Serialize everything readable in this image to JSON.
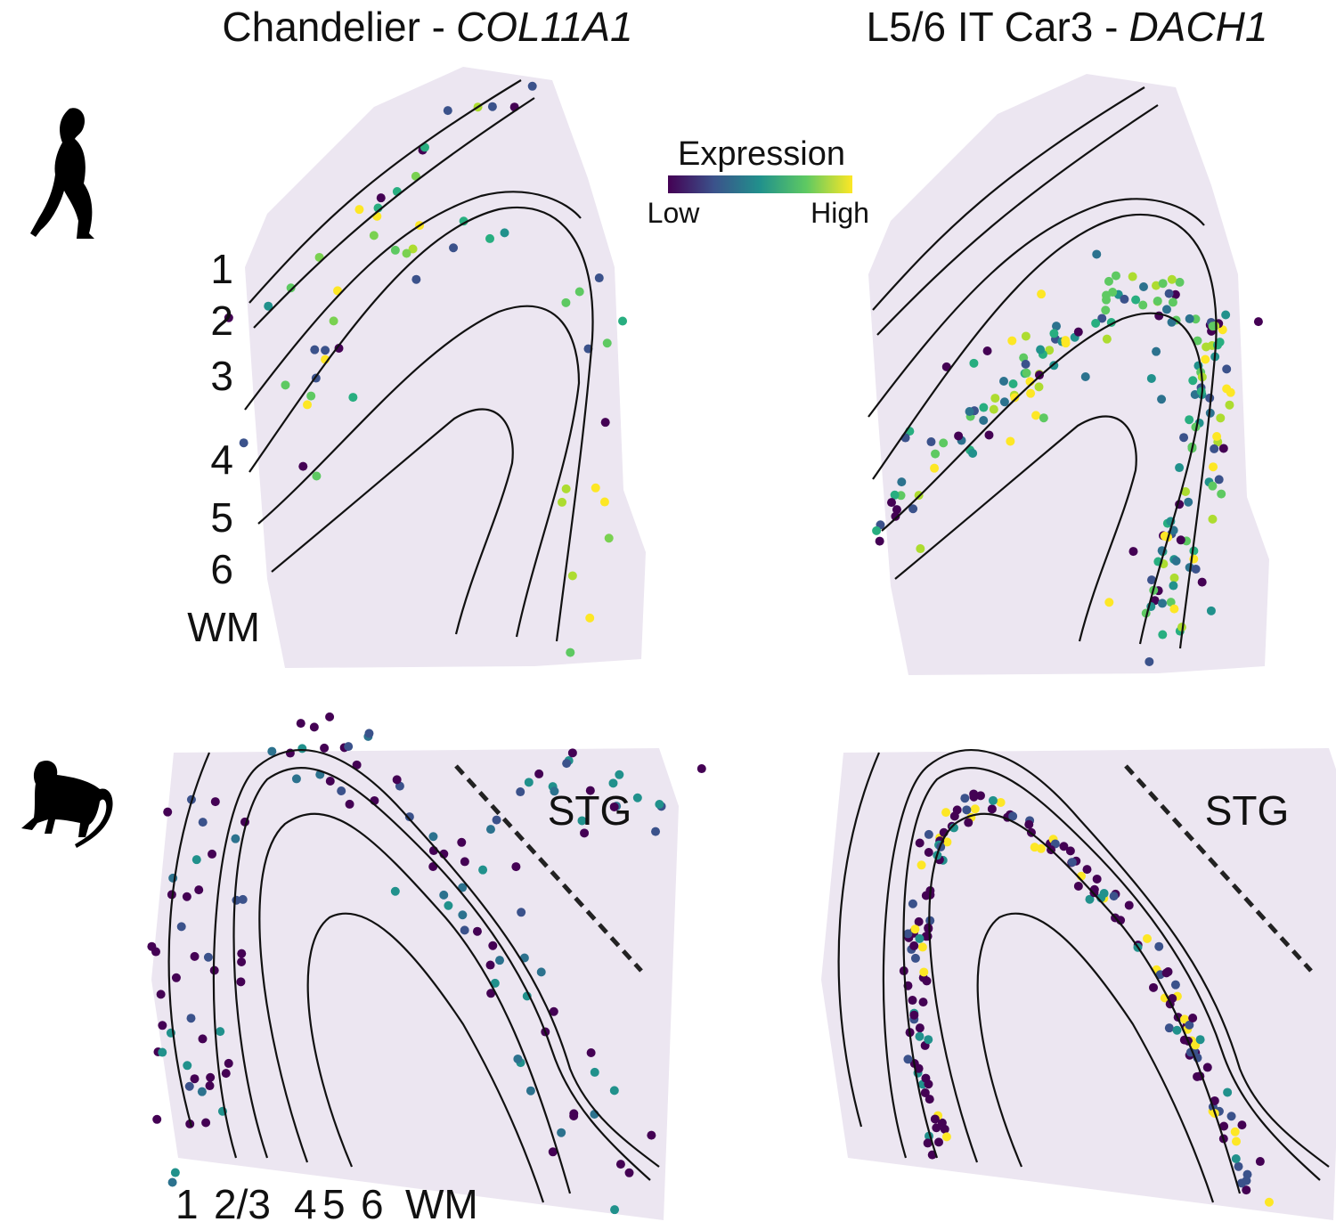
{
  "panels": [
    {
      "title": {
        "cell_type": "Chandelier -",
        "gene": "COL11A1"
      }
    },
    {
      "title": {
        "cell_type": "L5/6 IT Car3 -",
        "gene": "DACH1"
      }
    }
  ],
  "legend": {
    "title": "Expression",
    "low": "Low",
    "high": "High"
  },
  "human_layers": [
    "1",
    "2",
    "3",
    "4",
    "5",
    "6",
    "WM"
  ],
  "macaque_layers": [
    "1",
    "2/3",
    "4",
    "5",
    "6",
    "WM"
  ],
  "region_labels": [
    "STG",
    "STG"
  ]
}
